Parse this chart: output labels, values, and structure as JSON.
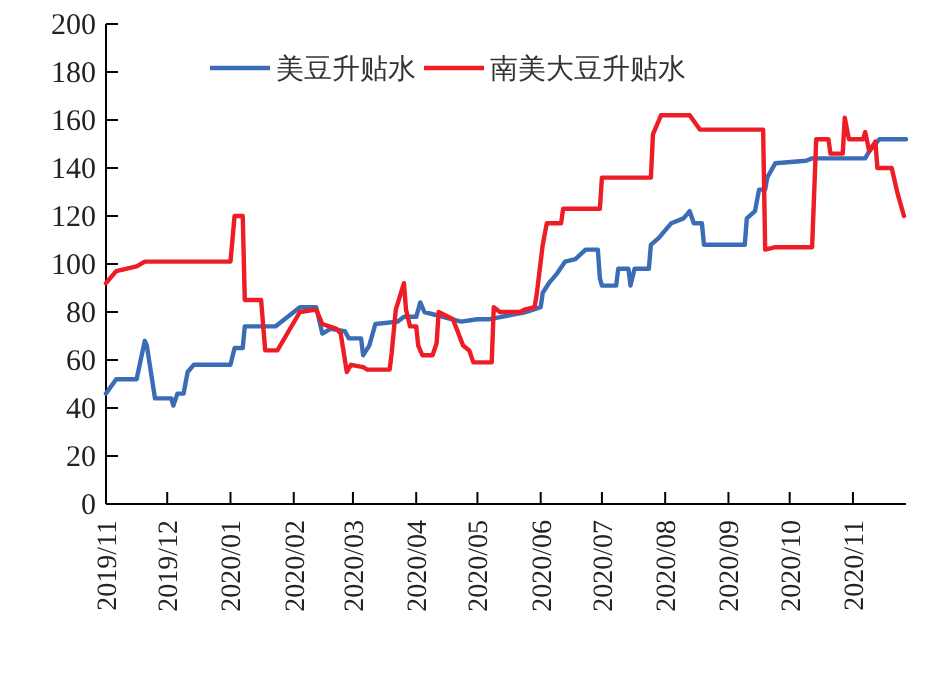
{
  "chart_data": {
    "type": "line",
    "legend": "top",
    "marker": "none",
    "line_style": "solid",
    "xlim": [
      "2019-11-01",
      "2020-11-27"
    ],
    "xticks": [
      {
        "value": "2019-11-01",
        "label": "2019/11"
      },
      {
        "value": "2019-12-01",
        "label": "2019/12"
      },
      {
        "value": "2020-01-01",
        "label": "2020/01"
      },
      {
        "value": "2020-02-01",
        "label": "2020/02"
      },
      {
        "value": "2020-03-01",
        "label": "2020/03"
      },
      {
        "value": "2020-04-01",
        "label": "2020/04"
      },
      {
        "value": "2020-05-01",
        "label": "2020/05"
      },
      {
        "value": "2020-06-01",
        "label": "2020/06"
      },
      {
        "value": "2020-07-01",
        "label": "2020/07"
      },
      {
        "value": "2020-08-01",
        "label": "2020/08"
      },
      {
        "value": "2020-09-01",
        "label": "2020/09"
      },
      {
        "value": "2020-10-01",
        "label": "2020/10"
      },
      {
        "value": "2020-11-01",
        "label": "2020/11"
      }
    ],
    "ylim": [
      0,
      200
    ],
    "yticks": [
      0,
      20,
      40,
      60,
      80,
      100,
      120,
      140,
      160,
      180,
      200
    ],
    "series": [
      {
        "name": "美豆升贴水",
        "color": "#3a6db5",
        "x": [
          "2019-11-01",
          "2019-11-06",
          "2019-11-16",
          "2019-11-20",
          "2019-11-21",
          "2019-11-25",
          "2019-12-03",
          "2019-12-04",
          "2019-12-06",
          "2019-12-09",
          "2019-12-11",
          "2019-12-14",
          "2020-01-01",
          "2020-01-03",
          "2020-01-07",
          "2020-01-08",
          "2020-01-23",
          "2020-02-04",
          "2020-02-12",
          "2020-02-15",
          "2020-02-19",
          "2020-02-26",
          "2020-02-28",
          "2020-03-05",
          "2020-03-06",
          "2020-03-09",
          "2020-03-12",
          "2020-03-23",
          "2020-03-26",
          "2020-04-01",
          "2020-04-03",
          "2020-04-05",
          "2020-04-14",
          "2020-04-23",
          "2020-05-01",
          "2020-05-07",
          "2020-05-25",
          "2020-06-01",
          "2020-06-02",
          "2020-06-05",
          "2020-06-09",
          "2020-06-13",
          "2020-06-18",
          "2020-06-23",
          "2020-06-29",
          "2020-06-30",
          "2020-07-01",
          "2020-07-08",
          "2020-07-09",
          "2020-07-14",
          "2020-07-15",
          "2020-07-17",
          "2020-07-24",
          "2020-07-25",
          "2020-07-29",
          "2020-08-04",
          "2020-08-10",
          "2020-08-13",
          "2020-08-15",
          "2020-08-19",
          "2020-08-20",
          "2020-09-09",
          "2020-09-10",
          "2020-09-14",
          "2020-09-16",
          "2020-09-19",
          "2020-09-20",
          "2020-09-24",
          "2020-10-09",
          "2020-10-12",
          "2020-11-07",
          "2020-11-09",
          "2020-11-14",
          "2020-11-27"
        ],
        "values": [
          46,
          52,
          52,
          68,
          66,
          44,
          44,
          41,
          46,
          46,
          55,
          58,
          58,
          65,
          65,
          74,
          74,
          82,
          82,
          71,
          73,
          72,
          69,
          69,
          62,
          66,
          75,
          76,
          78,
          78,
          84,
          80,
          78,
          76,
          77,
          77,
          80,
          82,
          88,
          92,
          96,
          101,
          102,
          106,
          106,
          94,
          91,
          91,
          98,
          98,
          91,
          98,
          98,
          108,
          111,
          117,
          119,
          122,
          117,
          117,
          108,
          108,
          119,
          122,
          131,
          131,
          136,
          142,
          143,
          144,
          144,
          147,
          152,
          152
        ]
      },
      {
        "name": "南美大豆升贴水",
        "color": "#ee1c25",
        "x": [
          "2019-11-01",
          "2019-11-06",
          "2019-11-16",
          "2019-11-20",
          "2020-01-01",
          "2020-01-03",
          "2020-01-07",
          "2020-01-08",
          "2020-01-16",
          "2020-01-18",
          "2020-01-24",
          "2020-02-04",
          "2020-02-12",
          "2020-02-15",
          "2020-02-22",
          "2020-02-24",
          "2020-02-27",
          "2020-02-29",
          "2020-03-06",
          "2020-03-08",
          "2020-03-19",
          "2020-03-20",
          "2020-03-22",
          "2020-03-26",
          "2020-03-27",
          "2020-03-29",
          "2020-04-01",
          "2020-04-02",
          "2020-04-04",
          "2020-04-09",
          "2020-04-11",
          "2020-04-12",
          "2020-04-19",
          "2020-04-24",
          "2020-04-27",
          "2020-04-29",
          "2020-05-08",
          "2020-05-09",
          "2020-05-12",
          "2020-05-22",
          "2020-05-24",
          "2020-05-29",
          "2020-05-30",
          "2020-06-02",
          "2020-06-04",
          "2020-06-11",
          "2020-06-12",
          "2020-06-30",
          "2020-07-01",
          "2020-07-25",
          "2020-07-26",
          "2020-07-30",
          "2020-08-13",
          "2020-08-18",
          "2020-09-18",
          "2020-09-19",
          "2020-09-24",
          "2020-10-12",
          "2020-10-14",
          "2020-10-20",
          "2020-10-21",
          "2020-10-27",
          "2020-10-28",
          "2020-10-30",
          "2020-11-06",
          "2020-11-07",
          "2020-11-09",
          "2020-11-12",
          "2020-11-13",
          "2020-11-20",
          "2020-11-23",
          "2020-11-26"
        ],
        "values": [
          92,
          97,
          99,
          101,
          101,
          120,
          120,
          85,
          85,
          64,
          64,
          80,
          81,
          75,
          73,
          71,
          55,
          58,
          57,
          56,
          56,
          63,
          81,
          92,
          81,
          74,
          74,
          66,
          62,
          62,
          67,
          80,
          77,
          66,
          64,
          59,
          59,
          82,
          80,
          80,
          81,
          82,
          87,
          108,
          117,
          117,
          123,
          123,
          136,
          136,
          154,
          162,
          162,
          156,
          156,
          106,
          107,
          107,
          152,
          152,
          146,
          146,
          161,
          152,
          152,
          155,
          147,
          151,
          140,
          140,
          129,
          120
        ]
      }
    ]
  }
}
